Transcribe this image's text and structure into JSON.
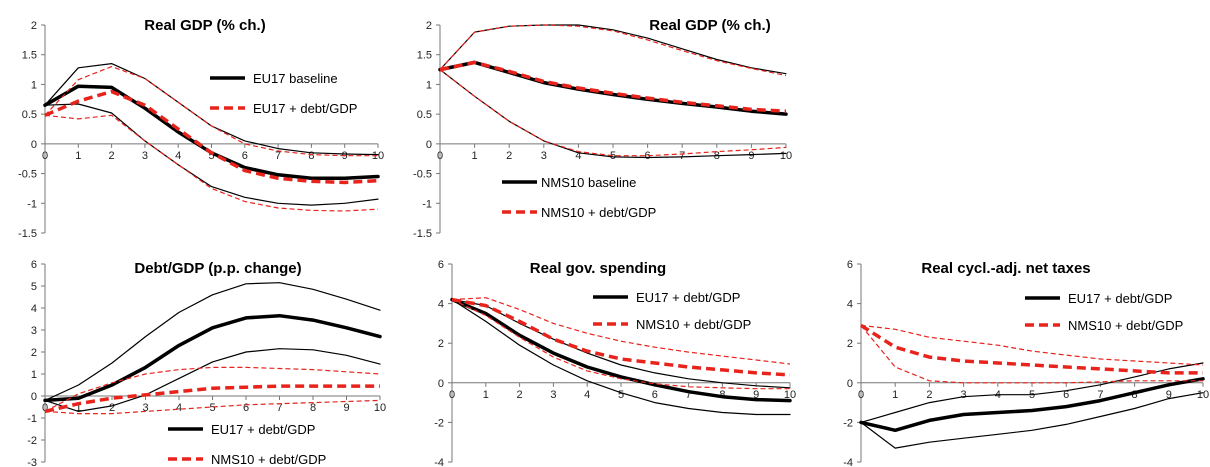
{
  "chart_data": [
    {
      "type": "line",
      "title": "Real GDP (% ch.)",
      "x": [
        0,
        1,
        2,
        3,
        4,
        5,
        6,
        7,
        8,
        9,
        10
      ],
      "xticks": [
        0,
        1,
        2,
        3,
        4,
        5,
        6,
        7,
        8,
        9,
        10
      ],
      "ylim": [
        -1.5,
        2
      ],
      "yticks": [
        -1.5,
        -1,
        -0.5,
        0,
        0.5,
        1,
        1.5,
        2
      ],
      "ytick_labels": [
        "-1.5",
        "-1",
        "-0.5",
        "0",
        "0.5",
        "1",
        "1.5",
        "2"
      ],
      "grid": false,
      "legend_position": "right",
      "legend": [
        "EU17 baseline",
        "EU17 + debt/GDP"
      ],
      "series": [
        {
          "name": "EU17 baseline",
          "color": "#000000",
          "style": "solid",
          "width": 3.5,
          "role": "median",
          "values": [
            0.65,
            0.97,
            0.95,
            0.6,
            0.2,
            -0.15,
            -0.4,
            -0.52,
            -0.58,
            -0.58,
            -0.55
          ]
        },
        {
          "color": "#000000",
          "style": "solid",
          "width": 1.2,
          "role": "upper band",
          "values": [
            0.65,
            1.28,
            1.35,
            1.1,
            0.7,
            0.3,
            0.05,
            -0.08,
            -0.15,
            -0.17,
            -0.18
          ]
        },
        {
          "color": "#000000",
          "style": "solid",
          "width": 1.2,
          "role": "lower band",
          "values": [
            0.65,
            0.67,
            0.52,
            0.05,
            -0.35,
            -0.72,
            -0.9,
            -1.0,
            -1.03,
            -1.0,
            -0.93
          ]
        },
        {
          "name": "EU17 + debt/GDP",
          "color": "#e8231c",
          "style": "dashed",
          "width": 3.5,
          "role": "median",
          "values": [
            0.48,
            0.72,
            0.88,
            0.65,
            0.25,
            -0.15,
            -0.45,
            -0.58,
            -0.63,
            -0.65,
            -0.62
          ]
        },
        {
          "color": "#e8231c",
          "style": "dashed",
          "width": 1.2,
          "role": "upper band",
          "values": [
            0.48,
            1.08,
            1.3,
            1.1,
            0.7,
            0.3,
            0.0,
            -0.12,
            -0.18,
            -0.2,
            -0.2
          ]
        },
        {
          "color": "#e8231c",
          "style": "dashed",
          "width": 1.2,
          "role": "lower band",
          "values": [
            0.48,
            0.42,
            0.48,
            0.05,
            -0.35,
            -0.75,
            -0.97,
            -1.08,
            -1.12,
            -1.13,
            -1.1
          ]
        }
      ]
    },
    {
      "type": "line",
      "title": "Real GDP (% ch.)",
      "x": [
        0,
        1,
        2,
        3,
        4,
        5,
        6,
        7,
        8,
        9,
        10
      ],
      "xticks": [
        0,
        1,
        2,
        3,
        4,
        5,
        6,
        7,
        8,
        9,
        10
      ],
      "ylim": [
        -1.5,
        2
      ],
      "yticks": [
        -1.5,
        -1,
        -0.5,
        0,
        0.5,
        1,
        1.5,
        2
      ],
      "ytick_labels": [
        "-1.5",
        "-1",
        "-0.5",
        "0",
        "0.5",
        "1",
        "1.5",
        "2"
      ],
      "grid": false,
      "legend_position": "bottom-left",
      "legend": [
        "NMS10 baseline",
        "NMS10 + debt/GDP"
      ],
      "series": [
        {
          "name": "NMS10 baseline",
          "color": "#000000",
          "style": "solid",
          "width": 3.5,
          "role": "median",
          "values": [
            1.25,
            1.37,
            1.2,
            1.03,
            0.92,
            0.83,
            0.75,
            0.68,
            0.62,
            0.55,
            0.5
          ]
        },
        {
          "color": "#000000",
          "style": "solid",
          "width": 1.2,
          "role": "upper band",
          "values": [
            1.25,
            1.88,
            1.98,
            2.0,
            2.0,
            1.92,
            1.78,
            1.6,
            1.42,
            1.28,
            1.18
          ]
        },
        {
          "color": "#000000",
          "style": "solid",
          "width": 1.2,
          "role": "lower band",
          "values": [
            1.25,
            0.8,
            0.38,
            0.05,
            -0.15,
            -0.22,
            -0.23,
            -0.22,
            -0.2,
            -0.18,
            -0.16
          ]
        },
        {
          "name": "NMS10 + debt/GDP",
          "color": "#e8231c",
          "style": "dashed",
          "width": 3.5,
          "role": "median",
          "values": [
            1.25,
            1.37,
            1.22,
            1.05,
            0.94,
            0.85,
            0.77,
            0.7,
            0.64,
            0.58,
            0.55
          ]
        },
        {
          "color": "#e8231c",
          "style": "dashed",
          "width": 1.2,
          "role": "upper band",
          "values": [
            1.25,
            1.88,
            1.98,
            2.0,
            1.98,
            1.9,
            1.75,
            1.57,
            1.4,
            1.27,
            1.15
          ]
        },
        {
          "color": "#e8231c",
          "style": "dashed",
          "width": 1.2,
          "role": "lower band",
          "values": [
            1.25,
            0.8,
            0.38,
            0.05,
            -0.13,
            -0.2,
            -0.2,
            -0.17,
            -0.13,
            -0.1,
            -0.06
          ]
        }
      ]
    },
    {
      "type": "line",
      "title": "Debt/GDP (p.p. change)",
      "x": [
        0,
        1,
        2,
        3,
        4,
        5,
        6,
        7,
        8,
        9,
        10
      ],
      "xticks": [
        0,
        1,
        2,
        3,
        4,
        5,
        6,
        7,
        8,
        9,
        10
      ],
      "ylim": [
        -3,
        6
      ],
      "yticks": [
        -3,
        -2,
        -1,
        0,
        1,
        2,
        3,
        4,
        5,
        6
      ],
      "ytick_labels": [
        "-3",
        "-2",
        "-1",
        "0",
        "1",
        "2",
        "3",
        "4",
        "5",
        "6"
      ],
      "grid": false,
      "legend_position": "bottom",
      "legend": [
        "EU17 + debt/GDP",
        "NMS10 + debt/GDP"
      ],
      "series": [
        {
          "name": "EU17 + debt/GDP",
          "color": "#000000",
          "style": "solid",
          "width": 3.5,
          "role": "median",
          "values": [
            -0.2,
            -0.1,
            0.5,
            1.3,
            2.3,
            3.1,
            3.55,
            3.65,
            3.45,
            3.1,
            2.7
          ]
        },
        {
          "color": "#000000",
          "style": "solid",
          "width": 1.2,
          "role": "upper band",
          "values": [
            -0.2,
            0.5,
            1.5,
            2.7,
            3.8,
            4.6,
            5.1,
            5.15,
            4.85,
            4.4,
            3.9
          ]
        },
        {
          "color": "#000000",
          "style": "solid",
          "width": 1.2,
          "role": "lower band",
          "values": [
            -0.2,
            -0.7,
            -0.45,
            0.05,
            0.8,
            1.55,
            2.0,
            2.15,
            2.1,
            1.85,
            1.45
          ]
        },
        {
          "name": "NMS10 + debt/GDP",
          "color": "#e8231c",
          "style": "dashed",
          "width": 3.5,
          "role": "median",
          "values": [
            -0.7,
            -0.35,
            -0.1,
            0.05,
            0.2,
            0.35,
            0.4,
            0.45,
            0.45,
            0.45,
            0.45
          ]
        },
        {
          "color": "#e8231c",
          "style": "dashed",
          "width": 1.2,
          "role": "upper band",
          "values": [
            -0.7,
            0.1,
            0.6,
            1.0,
            1.2,
            1.3,
            1.3,
            1.25,
            1.2,
            1.1,
            1.0
          ]
        },
        {
          "color": "#e8231c",
          "style": "dashed",
          "width": 1.2,
          "role": "lower band",
          "values": [
            -0.7,
            -0.8,
            -0.8,
            -0.7,
            -0.6,
            -0.5,
            -0.4,
            -0.35,
            -0.3,
            -0.25,
            -0.2
          ]
        }
      ]
    },
    {
      "type": "line",
      "title": "Real gov. spending",
      "x": [
        0,
        1,
        2,
        3,
        4,
        5,
        6,
        7,
        8,
        9,
        10
      ],
      "xticks": [
        0,
        1,
        2,
        3,
        4,
        5,
        6,
        7,
        8,
        9,
        10
      ],
      "ylim": [
        -4,
        6
      ],
      "yticks": [
        -4,
        -2,
        0,
        2,
        4,
        6
      ],
      "ytick_labels": [
        "-4",
        "-2",
        "0",
        "2",
        "4",
        "6"
      ],
      "grid": false,
      "legend_position": "top-right",
      "legend": [
        "EU17 + debt/GDP",
        "NMS10 + debt/GDP"
      ],
      "series": [
        {
          "name": "EU17 + debt/GDP",
          "color": "#000000",
          "style": "solid",
          "width": 3.5,
          "role": "median",
          "values": [
            4.2,
            3.5,
            2.4,
            1.5,
            0.8,
            0.3,
            -0.1,
            -0.45,
            -0.7,
            -0.85,
            -0.9
          ]
        },
        {
          "color": "#000000",
          "style": "solid",
          "width": 1.2,
          "role": "upper band",
          "values": [
            4.2,
            3.9,
            3.0,
            2.2,
            1.5,
            0.9,
            0.5,
            0.2,
            0.0,
            -0.15,
            -0.25
          ]
        },
        {
          "color": "#000000",
          "style": "solid",
          "width": 1.2,
          "role": "lower band",
          "values": [
            4.2,
            3.1,
            1.9,
            0.9,
            0.1,
            -0.5,
            -1.0,
            -1.3,
            -1.5,
            -1.6,
            -1.6
          ]
        },
        {
          "name": "NMS10 + debt/GDP",
          "color": "#e8231c",
          "style": "dashed",
          "width": 3.5,
          "role": "median",
          "values": [
            4.2,
            3.9,
            3.1,
            2.2,
            1.6,
            1.2,
            1.0,
            0.8,
            0.65,
            0.5,
            0.4
          ]
        },
        {
          "color": "#e8231c",
          "style": "dashed",
          "width": 1.2,
          "role": "upper band",
          "values": [
            4.2,
            4.3,
            3.7,
            3.0,
            2.5,
            2.1,
            1.8,
            1.55,
            1.35,
            1.15,
            0.95
          ]
        },
        {
          "color": "#e8231c",
          "style": "dashed",
          "width": 1.2,
          "role": "lower band",
          "values": [
            4.2,
            3.4,
            2.3,
            1.3,
            0.6,
            0.2,
            -0.05,
            -0.2,
            -0.25,
            -0.3,
            -0.3
          ]
        }
      ]
    },
    {
      "type": "line",
      "title": "Real cycl.-adj. net taxes",
      "x": [
        0,
        1,
        2,
        3,
        4,
        5,
        6,
        7,
        8,
        9,
        10
      ],
      "xticks": [
        0,
        1,
        2,
        3,
        4,
        5,
        6,
        7,
        8,
        9,
        10
      ],
      "ylim": [
        -4,
        6
      ],
      "yticks": [
        -4,
        -2,
        0,
        2,
        4,
        6
      ],
      "ytick_labels": [
        "-4",
        "-2",
        "0",
        "2",
        "4",
        "6"
      ],
      "grid": false,
      "legend_position": "top-right",
      "legend": [
        "EU17 + debt/GDP",
        "NMS10 + debt/GDP"
      ],
      "series": [
        {
          "name": "EU17 + debt/GDP",
          "color": "#000000",
          "style": "solid",
          "width": 3.5,
          "role": "median",
          "values": [
            -2.0,
            -2.4,
            -1.9,
            -1.6,
            -1.5,
            -1.4,
            -1.2,
            -0.9,
            -0.5,
            -0.1,
            0.2
          ]
        },
        {
          "color": "#000000",
          "style": "solid",
          "width": 1.2,
          "role": "upper band",
          "values": [
            -2.0,
            -1.5,
            -1.0,
            -0.7,
            -0.6,
            -0.6,
            -0.4,
            -0.1,
            0.3,
            0.7,
            1.0
          ]
        },
        {
          "color": "#000000",
          "style": "solid",
          "width": 1.2,
          "role": "lower band",
          "values": [
            -2.0,
            -3.3,
            -3.0,
            -2.8,
            -2.6,
            -2.4,
            -2.1,
            -1.7,
            -1.3,
            -0.8,
            -0.5
          ]
        },
        {
          "name": "NMS10 + debt/GDP",
          "color": "#e8231c",
          "style": "dashed",
          "width": 3.5,
          "role": "median",
          "values": [
            2.9,
            1.8,
            1.3,
            1.1,
            1.0,
            0.9,
            0.8,
            0.7,
            0.6,
            0.5,
            0.5
          ]
        },
        {
          "color": "#e8231c",
          "style": "dashed",
          "width": 1.2,
          "role": "upper band",
          "values": [
            2.9,
            2.7,
            2.3,
            2.1,
            1.9,
            1.6,
            1.4,
            1.2,
            1.1,
            1.0,
            0.9
          ]
        },
        {
          "color": "#e8231c",
          "style": "dashed",
          "width": 1.2,
          "role": "lower band",
          "values": [
            2.9,
            0.8,
            0.1,
            0.0,
            0.0,
            0.0,
            0.0,
            0.05,
            0.1,
            0.1,
            0.1
          ]
        }
      ]
    }
  ]
}
